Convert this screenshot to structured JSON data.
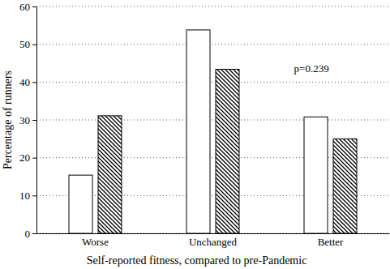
{
  "chart_data": {
    "type": "bar",
    "categories": [
      "Worse",
      "Unchanged",
      "Better"
    ],
    "series": [
      {
        "color": "#ffffff",
        "values": [
          15.4,
          53.8,
          30.8
        ]
      },
      {
        "color": "#000000",
        "marker": "hatch",
        "values": [
          31.1,
          43.4,
          25.0
        ]
      }
    ],
    "x_label": "Self-reported fitness, compared to pre-Pandemic",
    "y_label": "Percentage of runners",
    "annotation": "p=0.239",
    "ylim": [
      0,
      60
    ],
    "yticks": [
      0,
      10,
      20,
      30,
      40,
      50,
      60
    ],
    "grid": true
  }
}
